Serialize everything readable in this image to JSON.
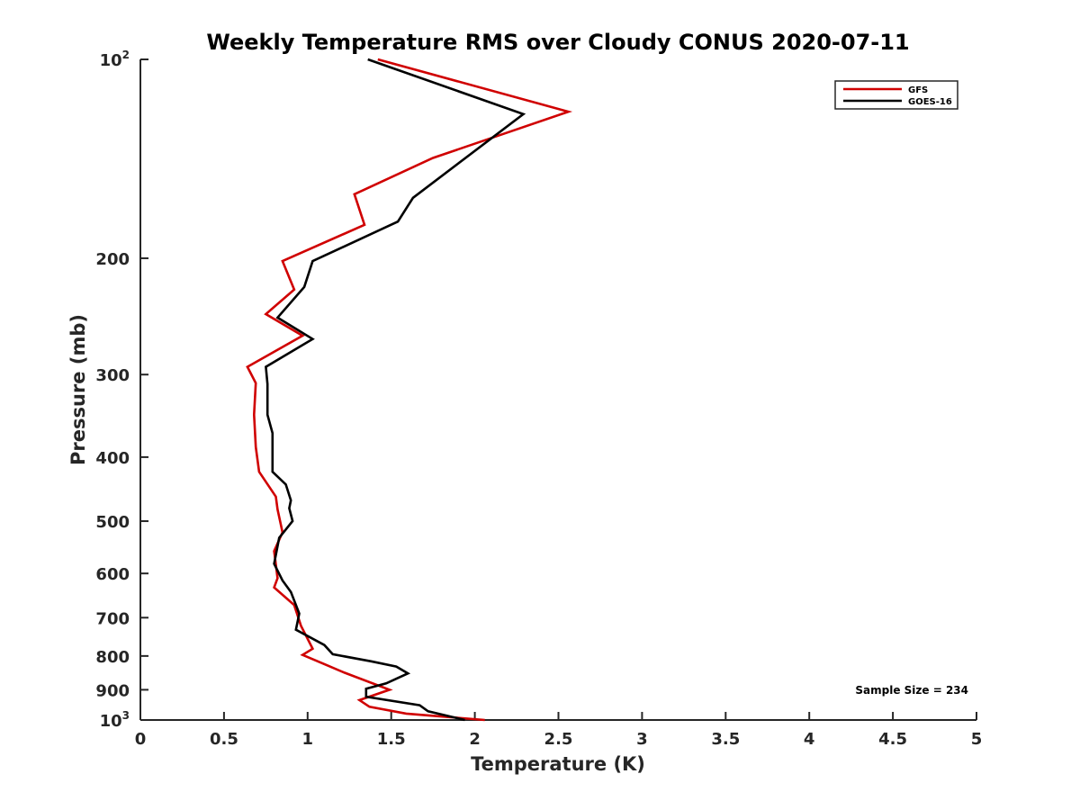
{
  "chart_data": {
    "type": "line",
    "title": "Weekly Temperature RMS over Cloudy CONUS 2020-07-11",
    "xlabel": "Temperature (K)",
    "ylabel": "Pressure (mb)",
    "xlim": [
      0,
      5
    ],
    "ylim": [
      100,
      1000
    ],
    "y_scale": "log",
    "y_reversed": true,
    "grid": false,
    "x_ticks": [
      "0",
      "0.5",
      "1",
      "1.5",
      "2",
      "2.5",
      "3",
      "3.5",
      "4",
      "4.5",
      "5"
    ],
    "y_ticks": [
      {
        "value": 100,
        "base": "10",
        "exp": "2"
      },
      {
        "value": 200,
        "label": "200"
      },
      {
        "value": 300,
        "label": "300"
      },
      {
        "value": 400,
        "label": "400"
      },
      {
        "value": 500,
        "label": "500"
      },
      {
        "value": 600,
        "label": "600"
      },
      {
        "value": 700,
        "label": "700"
      },
      {
        "value": 800,
        "label": "800"
      },
      {
        "value": 900,
        "label": "900"
      },
      {
        "value": 1000,
        "base": "10",
        "exp": "3"
      }
    ],
    "legend": {
      "position": "top-right"
    },
    "annotation": "Sample Size = 234",
    "series": [
      {
        "name": "GFS",
        "color": "#d00000",
        "points": [
          [
            1.42,
            100
          ],
          [
            2.56,
            120
          ],
          [
            1.75,
            141
          ],
          [
            1.28,
            160
          ],
          [
            1.34,
            178
          ],
          [
            0.85,
            202
          ],
          [
            0.92,
            223
          ],
          [
            0.75,
            243
          ],
          [
            0.97,
            262
          ],
          [
            0.64,
            292
          ],
          [
            0.69,
            309
          ],
          [
            0.68,
            345
          ],
          [
            0.69,
            386
          ],
          [
            0.71,
            421
          ],
          [
            0.81,
            459
          ],
          [
            0.82,
            480
          ],
          [
            0.85,
            520
          ],
          [
            0.8,
            555
          ],
          [
            0.82,
            610
          ],
          [
            0.8,
            630
          ],
          [
            0.92,
            670
          ],
          [
            0.96,
            720
          ],
          [
            1.03,
            780
          ],
          [
            0.97,
            797
          ],
          [
            1.11,
            825
          ],
          [
            1.22,
            848
          ],
          [
            1.49,
            900
          ],
          [
            1.31,
            933
          ],
          [
            1.37,
            955
          ],
          [
            1.59,
            978
          ],
          [
            2.06,
            1000
          ]
        ]
      },
      {
        "name": "GOES-16",
        "color": "#000000",
        "points": [
          [
            1.36,
            100
          ],
          [
            2.29,
            121
          ],
          [
            1.63,
            162
          ],
          [
            1.54,
            176
          ],
          [
            1.03,
            202
          ],
          [
            0.98,
            221
          ],
          [
            0.82,
            246
          ],
          [
            1.03,
            265
          ],
          [
            0.75,
            292
          ],
          [
            0.76,
            310
          ],
          [
            0.76,
            345
          ],
          [
            0.79,
            368
          ],
          [
            0.79,
            421
          ],
          [
            0.87,
            440
          ],
          [
            0.9,
            465
          ],
          [
            0.89,
            478
          ],
          [
            0.91,
            500
          ],
          [
            0.83,
            530
          ],
          [
            0.8,
            580
          ],
          [
            0.85,
            615
          ],
          [
            0.9,
            640
          ],
          [
            0.95,
            690
          ],
          [
            0.93,
            730
          ],
          [
            1.1,
            770
          ],
          [
            1.15,
            795
          ],
          [
            1.38,
            815
          ],
          [
            1.53,
            830
          ],
          [
            1.6,
            850
          ],
          [
            1.47,
            880
          ],
          [
            1.35,
            897
          ],
          [
            1.35,
            922
          ],
          [
            1.67,
            950
          ],
          [
            1.72,
            970
          ],
          [
            1.94,
            1000
          ]
        ]
      }
    ]
  }
}
